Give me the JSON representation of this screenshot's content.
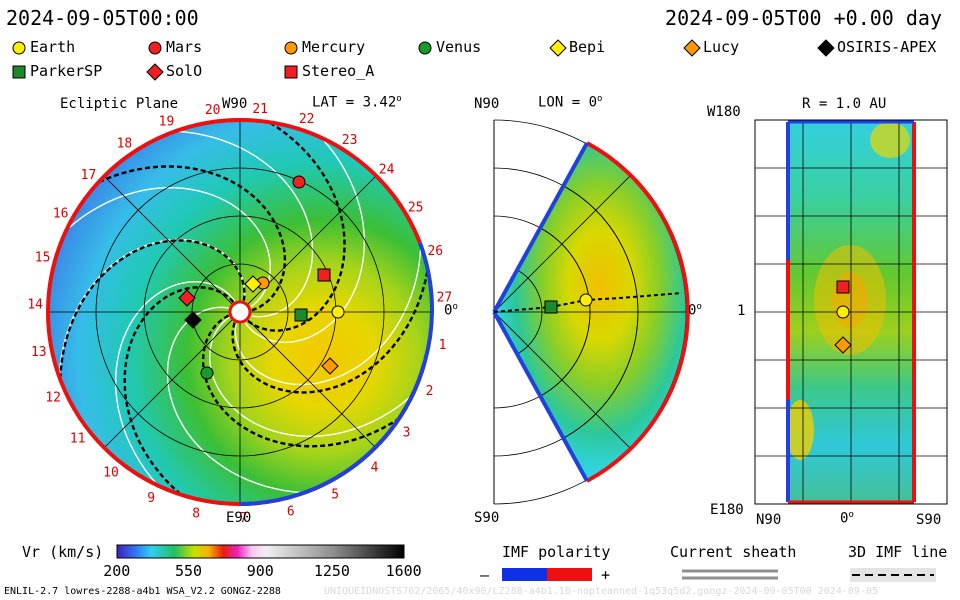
{
  "header": {
    "date_left": "2024-09-05T00:00",
    "date_right": "2024-09-05T00 +0.00 day"
  },
  "legend": [
    {
      "label": "Earth",
      "marker": "circle",
      "color": "#ffee00"
    },
    {
      "label": "Mars",
      "marker": "circle",
      "color": "#ee2020"
    },
    {
      "label": "Mercury",
      "marker": "circle",
      "color": "#ff9900"
    },
    {
      "label": "Venus",
      "marker": "circle",
      "color": "#1a9a2a"
    },
    {
      "label": "Bepi",
      "marker": "diamond",
      "color": "#ffee00"
    },
    {
      "label": "Lucy",
      "marker": "diamond",
      "color": "#ff9900"
    },
    {
      "label": "OSIRIS-APEX",
      "marker": "diamond",
      "color": "#000000"
    },
    {
      "label": "ParkerSP",
      "marker": "square",
      "color": "#1a8a2a"
    },
    {
      "label": "SolO",
      "marker": "diamond",
      "color": "#ee2020"
    },
    {
      "label": "Stereo_A",
      "marker": "square",
      "color": "#ee2020"
    }
  ],
  "panels": {
    "ecliptic": {
      "title": "Ecliptic Plane",
      "top_label": "W90",
      "bottom_label": "E90",
      "lat_label": "LAT = 3.42",
      "right_label": "0",
      "carrington_ticks": [
        "1",
        "2",
        "3",
        "4",
        "5",
        "6",
        "7",
        "8",
        "9",
        "10",
        "11",
        "12",
        "13",
        "14",
        "15",
        "16",
        "17",
        "18",
        "19",
        "20",
        "21",
        "22",
        "23",
        "24",
        "25",
        "26",
        "27"
      ]
    },
    "meridional": {
      "top_label": "N90",
      "bottom_label": "S90",
      "lon_label": "LON = 0",
      "right_label": "0"
    },
    "map": {
      "r_label": "R = 1.0 AU",
      "top_left": "W180",
      "bottom_left": "E180",
      "mid_left": "1",
      "x_left": "N90",
      "x_mid": "0",
      "x_right": "S90"
    }
  },
  "colorbar": {
    "label": "Vr (km/s)",
    "ticks": [
      "200",
      "550",
      "900",
      "1250",
      "1600"
    ]
  },
  "imf": {
    "polarity_label": "IMF polarity",
    "minus": "–",
    "plus": "+",
    "sheath_label": "Current sheath",
    "line_label": "3D IMF line"
  },
  "footer": {
    "left": "ENLIL-2.7 lowres-2288-a4b1 WSA_V2.2 GONGZ-2288",
    "right": "UNIQUEIDNOSTS702/2065/40x90/LZ288-a4b1.10-nopteanned-1q53q5d2.gongz-2024-09-05T00   2024-09-05"
  },
  "chart_data": {
    "type": "heatmap",
    "quantity": "Vr (km/s)",
    "color_range": [
      200,
      1600
    ],
    "ecliptic_positions_deg": {
      "Earth": {
        "lon": 0,
        "r_au": 1.0
      },
      "Stereo_A": {
        "lon": 16,
        "r_au": 0.97
      },
      "Mars": {
        "lon": 62,
        "r_au": 1.5
      },
      "ParkerSP": {
        "lon": -2,
        "r_au": 0.6
      },
      "Bepi": {
        "lon": 40,
        "r_au": 0.3
      },
      "Mercury": {
        "lon": 40,
        "r_au": 0.28
      },
      "Lucy": {
        "lon": -37,
        "r_au": 1.0
      },
      "SolO": {
        "lon": 171,
        "r_au": 0.52
      },
      "OSIRIS-APEX": {
        "lon": 190,
        "r_au": 0.45
      },
      "Venus": {
        "lon": 243,
        "r_au": 0.7
      }
    }
  }
}
